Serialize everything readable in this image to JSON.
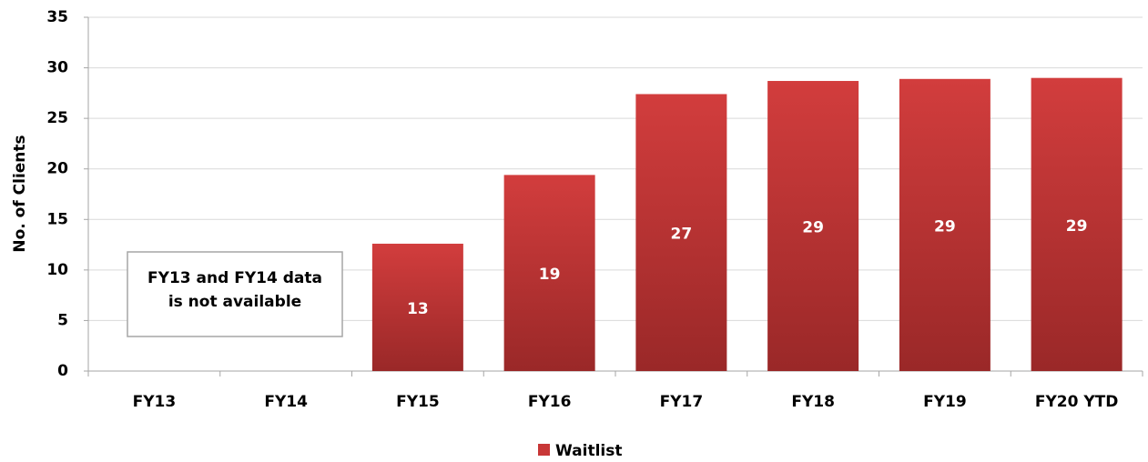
{
  "chart_data": {
    "type": "bar",
    "y_label": "No. of Clients",
    "categories": [
      "FY13",
      "FY14",
      "FY15",
      "FY16",
      "FY17",
      "FY18",
      "FY19",
      "FY20 YTD"
    ],
    "series": [
      {
        "name": "Waitlist",
        "color": "#c83737",
        "values": [
          null,
          null,
          12.6,
          19.4,
          27.4,
          28.7,
          28.9,
          29.0
        ],
        "value_labels": [
          null,
          null,
          "13",
          "19",
          "27",
          "29",
          "29",
          "29"
        ]
      }
    ],
    "annotation": [
      "FY13 and FY14 data",
      "is not available"
    ],
    "ylim": [
      0,
      35
    ],
    "yticks": [
      0,
      5,
      10,
      15,
      20,
      25,
      30,
      35
    ],
    "grid": true,
    "legend": "bottom"
  }
}
